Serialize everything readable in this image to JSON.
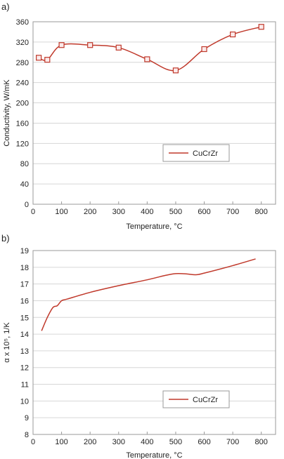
{
  "chart_data": [
    {
      "type": "line",
      "panel_label": "a)",
      "xlabel": "Temperature, °C",
      "ylabel": "Conductivity, W/mK",
      "xlim": [
        0,
        850
      ],
      "ylim": [
        0,
        360
      ],
      "xticks": [
        0,
        100,
        200,
        300,
        400,
        500,
        600,
        700,
        800
      ],
      "yticks": [
        0,
        40,
        80,
        120,
        160,
        200,
        240,
        280,
        320,
        360
      ],
      "grid": "horizontal",
      "legend": "center-right",
      "series": [
        {
          "name": "CuCrZr",
          "color": "#c0392b",
          "marker": "square",
          "x": [
            20,
            50,
            100,
            200,
            300,
            400,
            500,
            600,
            700,
            800
          ],
          "y": [
            289,
            285,
            314,
            314,
            309,
            286,
            264,
            306,
            335,
            350
          ]
        }
      ]
    },
    {
      "type": "line",
      "panel_label": "b)",
      "xlabel": "Temperature, °C",
      "ylabel": "α x 10⁵, 1/K",
      "xlim": [
        0,
        850
      ],
      "ylim": [
        8,
        19
      ],
      "xticks": [
        0,
        100,
        200,
        300,
        400,
        500,
        600,
        700,
        800
      ],
      "yticks": [
        8,
        9,
        10,
        11,
        12,
        13,
        14,
        15,
        16,
        17,
        18,
        19
      ],
      "grid": "horizontal",
      "legend": "center-right",
      "series": [
        {
          "name": "CuCrZr",
          "color": "#c0392b",
          "marker": "none",
          "x": [
            30,
            50,
            70,
            85,
            100,
            120,
            200,
            300,
            400,
            460,
            500,
            540,
            570,
            600,
            700,
            780
          ],
          "y": [
            14.2,
            15.0,
            15.6,
            15.7,
            16.0,
            16.1,
            16.5,
            16.9,
            17.25,
            17.5,
            17.62,
            17.6,
            17.55,
            17.65,
            18.1,
            18.5
          ]
        }
      ]
    }
  ]
}
